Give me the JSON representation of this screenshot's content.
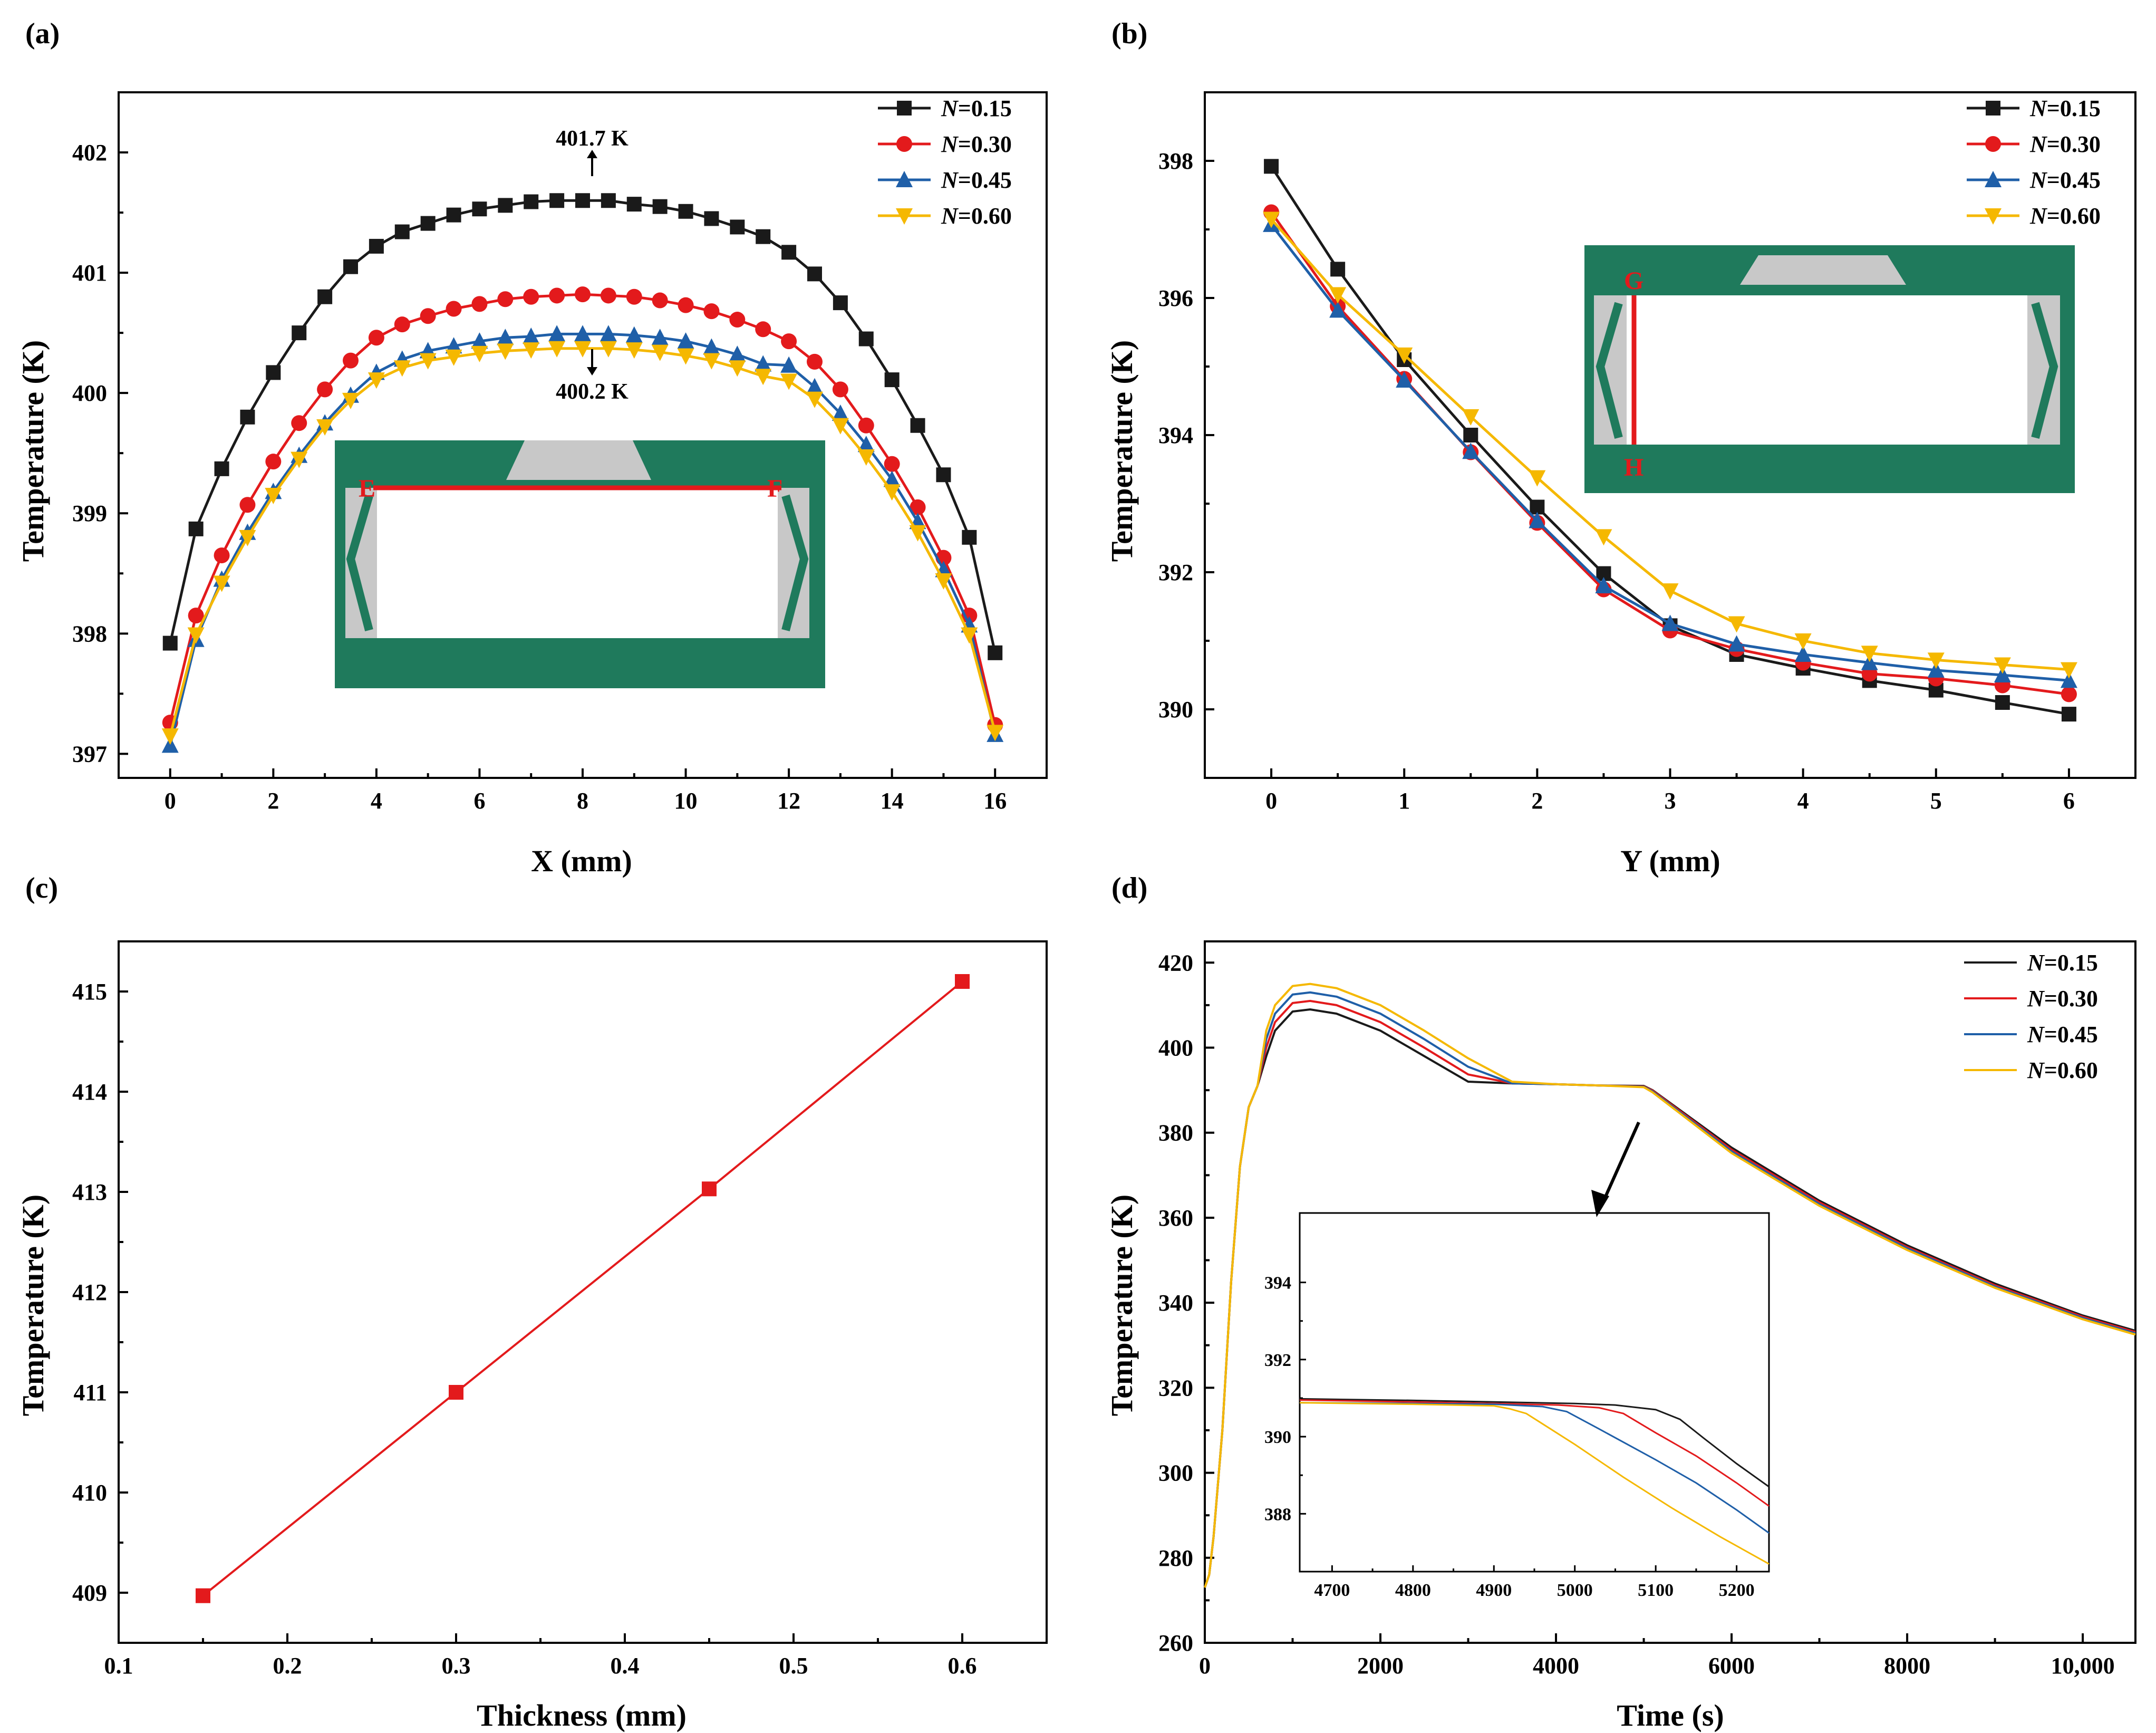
{
  "colors": {
    "n015": "#1a1a1a",
    "n030": "#e31a1c",
    "n045": "#1f5fa8",
    "n060": "#f5b800",
    "thickness_line": "#e31a1c",
    "inset_green": "#1f7a5c",
    "inset_gray": "#c8c8c8",
    "inset_red": "#e31a1c"
  },
  "legend": {
    "prefix": "N",
    "labels": [
      "=0.15",
      "=0.30",
      "=0.45",
      "=0.60"
    ]
  },
  "chart_data": [
    {
      "panel": "(a)",
      "type": "line",
      "xlabel": "X (mm)",
      "ylabel": "Temperature (K)",
      "xlim": [
        -1,
        17
      ],
      "ylim": [
        396.8,
        402.5
      ],
      "xticks": [
        0,
        2,
        4,
        6,
        8,
        10,
        12,
        14,
        16
      ],
      "yticks": [
        397,
        398,
        399,
        400,
        401,
        402
      ],
      "x": [
        0,
        0.5,
        1,
        1.5,
        2,
        2.5,
        3,
        3.5,
        4,
        4.5,
        5,
        5.5,
        6,
        6.5,
        7,
        7.5,
        8,
        8.5,
        9,
        9.5,
        10,
        10.5,
        11,
        11.5,
        12,
        12.5,
        13,
        13.5,
        14,
        14.5,
        15,
        15.5,
        16
      ],
      "series": [
        {
          "name": "N=0.15",
          "marker": "square",
          "values": [
            397.92,
            398.87,
            399.37,
            399.8,
            400.17,
            400.5,
            400.8,
            401.05,
            401.22,
            401.34,
            401.41,
            401.48,
            401.53,
            401.56,
            401.59,
            401.6,
            401.6,
            401.6,
            401.57,
            401.55,
            401.51,
            401.45,
            401.38,
            401.3,
            401.17,
            400.99,
            400.75,
            400.45,
            400.11,
            399.73,
            399.32,
            398.8,
            397.84
          ]
        },
        {
          "name": "N=0.30",
          "marker": "circle",
          "values": [
            397.26,
            398.15,
            398.65,
            399.07,
            399.43,
            399.75,
            400.03,
            400.27,
            400.46,
            400.57,
            400.64,
            400.7,
            400.74,
            400.78,
            400.8,
            400.81,
            400.82,
            400.81,
            400.8,
            400.77,
            400.73,
            400.68,
            400.61,
            400.53,
            400.43,
            400.26,
            400.03,
            399.73,
            399.41,
            399.05,
            398.63,
            398.15,
            397.24
          ]
        },
        {
          "name": "N=0.45",
          "marker": "triangle-up",
          "values": [
            397.07,
            397.95,
            398.45,
            398.84,
            399.18,
            399.48,
            399.75,
            399.98,
            400.17,
            400.28,
            400.35,
            400.39,
            400.43,
            400.46,
            400.47,
            400.49,
            400.49,
            400.49,
            400.48,
            400.46,
            400.43,
            400.38,
            400.32,
            400.24,
            400.23,
            400.05,
            399.83,
            399.57,
            399.28,
            398.93,
            398.53,
            398.07,
            397.16
          ]
        },
        {
          "name": "N=0.60",
          "marker": "triangle-down",
          "values": [
            397.15,
            397.99,
            398.42,
            398.8,
            399.15,
            399.45,
            399.72,
            399.94,
            400.11,
            400.21,
            400.27,
            400.3,
            400.33,
            400.35,
            400.36,
            400.37,
            400.37,
            400.37,
            400.36,
            400.34,
            400.31,
            400.27,
            400.21,
            400.14,
            400.1,
            399.95,
            399.73,
            399.47,
            399.18,
            398.84,
            398.44,
            397.99,
            397.18
          ]
        }
      ],
      "annotations": [
        "401.7 K",
        "400.2 K"
      ],
      "inset_points": [
        "E",
        "F"
      ]
    },
    {
      "panel": "(b)",
      "type": "line",
      "xlabel": "Y (mm)",
      "ylabel": "Temperature (K)",
      "xlim": [
        -0.5,
        6.5
      ],
      "ylim": [
        389,
        399
      ],
      "xticks": [
        0,
        1,
        2,
        3,
        4,
        5,
        6
      ],
      "yticks": [
        390,
        392,
        394,
        396,
        398
      ],
      "x": [
        0,
        0.5,
        1,
        1.5,
        2,
        2.5,
        3,
        3.5,
        4,
        4.5,
        5,
        5.5,
        6
      ],
      "series": [
        {
          "name": "N=0.15",
          "marker": "square",
          "values": [
            397.92,
            396.42,
            395.1,
            394.0,
            392.95,
            391.98,
            391.22,
            390.8,
            390.6,
            390.42,
            390.28,
            390.1,
            389.93
          ]
        },
        {
          "name": "N=0.30",
          "marker": "circle",
          "values": [
            397.25,
            395.88,
            394.82,
            393.75,
            392.72,
            391.75,
            391.15,
            390.88,
            390.68,
            390.52,
            390.45,
            390.35,
            390.22
          ]
        },
        {
          "name": "N=0.45",
          "marker": "triangle-up",
          "values": [
            397.07,
            395.82,
            394.8,
            393.76,
            392.75,
            391.8,
            391.25,
            390.95,
            390.8,
            390.68,
            390.57,
            390.5,
            390.42
          ]
        },
        {
          "name": "N=0.60",
          "marker": "triangle-down",
          "values": [
            397.15,
            396.05,
            395.17,
            394.27,
            393.38,
            392.52,
            391.73,
            391.25,
            391.0,
            390.82,
            390.72,
            390.65,
            390.58
          ]
        }
      ],
      "inset_points": [
        "G",
        "H"
      ]
    },
    {
      "panel": "(c)",
      "type": "line",
      "xlabel": "Thickness (mm)",
      "ylabel": "Temperature (K)",
      "xlim": [
        0.1,
        0.65
      ],
      "ylim": [
        408.5,
        415.5
      ],
      "xticks": [
        0.1,
        0.2,
        0.3,
        0.4,
        0.5,
        0.6
      ],
      "yticks": [
        409,
        410,
        411,
        412,
        413,
        414,
        415
      ],
      "x": [
        0.15,
        0.3,
        0.45,
        0.6
      ],
      "series": [
        {
          "name": "Temperature",
          "marker": "square",
          "values": [
            408.97,
            411.0,
            413.03,
            415.1
          ]
        }
      ]
    },
    {
      "panel": "(d)",
      "type": "line",
      "xlabel": "Time (s)",
      "ylabel": "Temperature (K)",
      "xlim": [
        0,
        10600
      ],
      "ylim": [
        260,
        425
      ],
      "xticks": [
        0,
        2000,
        4000,
        6000,
        8000,
        10000
      ],
      "xtick_labels": [
        "0",
        "2000",
        "4000",
        "6000",
        "8000",
        "10,000"
      ],
      "yticks": [
        260,
        280,
        300,
        320,
        340,
        360,
        380,
        400,
        420
      ],
      "series": [
        {
          "name": "N=0.15",
          "x": [
            0,
            50,
            100,
            200,
            300,
            400,
            500,
            600,
            700,
            800,
            1000,
            1200,
            1500,
            2000,
            2500,
            3000,
            3500,
            4000,
            4500,
            5000,
            5100,
            6000,
            7000,
            8000,
            9000,
            10000,
            10600
          ],
          "values": [
            273,
            276,
            285,
            310,
            345,
            372,
            386,
            391,
            398,
            404,
            408.5,
            409,
            408,
            404,
            398,
            392,
            391.6,
            391.4,
            391.1,
            391,
            390,
            376.5,
            364,
            353.5,
            344.5,
            337,
            333.4
          ]
        },
        {
          "name": "N=0.30",
          "x": [
            0,
            50,
            100,
            200,
            300,
            400,
            500,
            600,
            700,
            800,
            1000,
            1200,
            1500,
            2000,
            2500,
            3000,
            3500,
            4000,
            4500,
            5000,
            5100,
            6000,
            7000,
            8000,
            9000,
            10000,
            10600
          ],
          "values": [
            273,
            276,
            285,
            310,
            345,
            372,
            386,
            391,
            400,
            406,
            410.5,
            411,
            410,
            406,
            400,
            393.7,
            391.6,
            391.4,
            391.1,
            390.9,
            389.9,
            376,
            363.6,
            353.1,
            344.1,
            336.7,
            333.1
          ]
        },
        {
          "name": "N=0.45",
          "x": [
            0,
            50,
            100,
            200,
            300,
            400,
            500,
            600,
            700,
            800,
            1000,
            1200,
            1500,
            2000,
            2500,
            3000,
            3500,
            4000,
            4500,
            5000,
            5100,
            6000,
            7000,
            8000,
            9000,
            10000,
            10600
          ],
          "values": [
            273,
            276,
            285,
            310,
            345,
            372,
            386,
            391,
            402,
            408,
            412.5,
            413,
            412,
            408,
            402,
            395.5,
            391.6,
            391.4,
            391.1,
            390.8,
            389.7,
            375.6,
            363.2,
            352.8,
            343.8,
            336.4,
            332.8
          ]
        },
        {
          "name": "N=0.60",
          "x": [
            0,
            50,
            100,
            200,
            300,
            400,
            500,
            600,
            700,
            800,
            1000,
            1200,
            1500,
            2000,
            2500,
            3000,
            3500,
            4000,
            4500,
            5000,
            5100,
            6000,
            7000,
            8000,
            9000,
            10000,
            10600
          ],
          "values": [
            273,
            276,
            285,
            310,
            345,
            372,
            386,
            391,
            404,
            410,
            414.5,
            415,
            414,
            410,
            404,
            397.5,
            392,
            391.4,
            391.1,
            390.7,
            389.5,
            375.2,
            362.8,
            352.4,
            343.5,
            336.1,
            332.5
          ]
        }
      ],
      "inset": {
        "type": "line",
        "xlim": [
          4660,
          5240
        ],
        "ylim": [
          386.5,
          395.8
        ],
        "xticks": [
          4700,
          4800,
          4900,
          5000,
          5100,
          5200
        ],
        "yticks": [
          388,
          390,
          392,
          394
        ],
        "series": [
          {
            "name": "N=0.15",
            "x": [
              4660,
              4800,
              4900,
              5000,
              5050,
              5100,
              5130,
              5160,
              5200,
              5240
            ],
            "values": [
              390.98,
              390.94,
              390.9,
              390.86,
              390.82,
              390.7,
              390.45,
              389.95,
              389.3,
              388.7
            ]
          },
          {
            "name": "N=0.30",
            "x": [
              4660,
              4800,
              4900,
              4980,
              5030,
              5060,
              5100,
              5150,
              5200,
              5240
            ],
            "values": [
              390.95,
              390.9,
              390.86,
              390.82,
              390.75,
              390.6,
              390.1,
              389.5,
              388.8,
              388.2
            ]
          },
          {
            "name": "N=0.45",
            "x": [
              4660,
              4800,
              4900,
              4960,
              4990,
              5030,
              5100,
              5150,
              5200,
              5240
            ],
            "values": [
              390.88,
              390.86,
              390.84,
              390.78,
              390.65,
              390.2,
              389.4,
              388.8,
              388.1,
              387.5
            ]
          },
          {
            "name": "N=0.60",
            "x": [
              4660,
              4800,
              4900,
              4920,
              4940,
              5000,
              5060,
              5120,
              5180,
              5240
            ],
            "values": [
              390.88,
              390.84,
              390.8,
              390.72,
              390.6,
              389.8,
              388.95,
              388.15,
              387.4,
              386.7
            ]
          }
        ]
      }
    }
  ]
}
